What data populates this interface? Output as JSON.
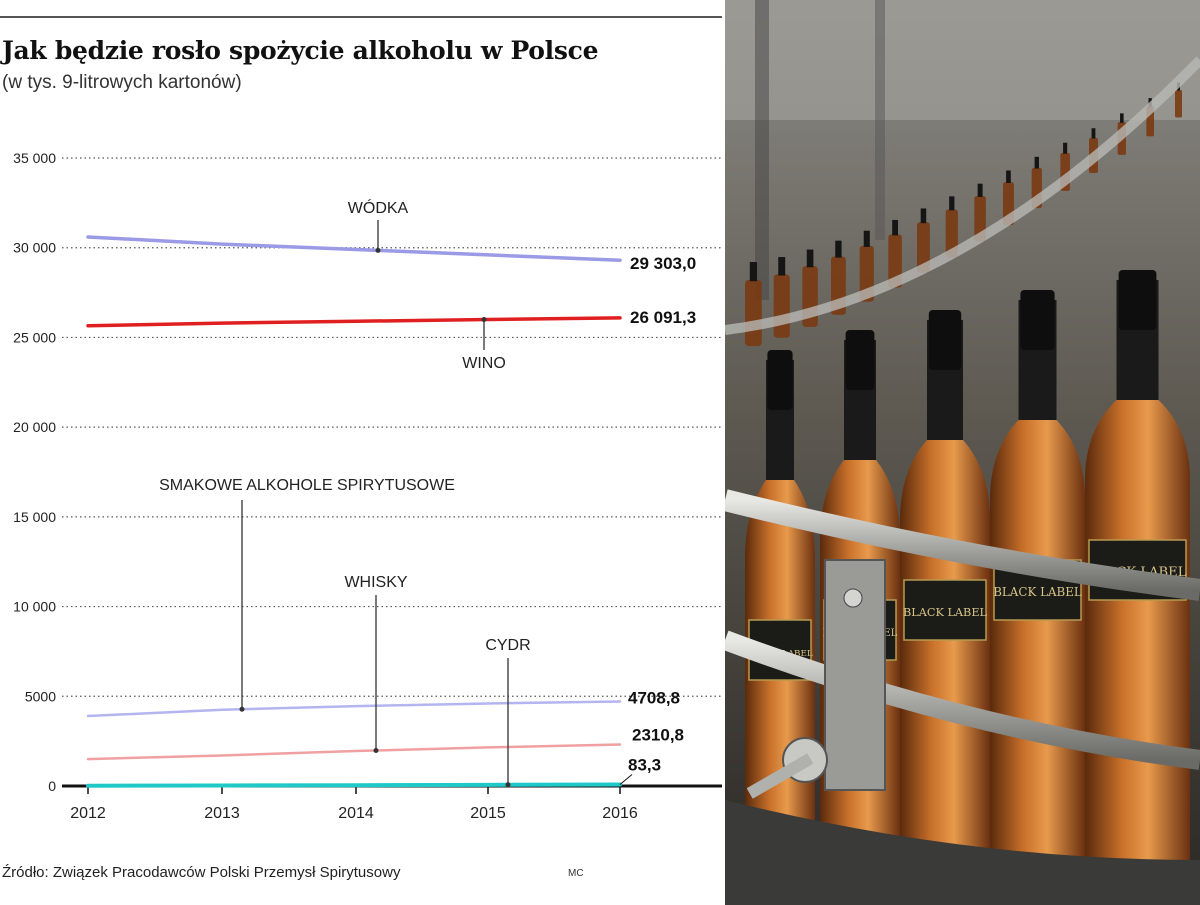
{
  "title": "Jak będzie rosło spożycie alkoholu w Polsce",
  "subtitle": "(w tys. 9-litrowych kartonów)",
  "source": "Źródło: Związek Pracodawców Polski Przemysł Spirytusowy",
  "credit": "MC",
  "colors": {
    "wodka": "#9a9ae6",
    "wino": "#e02020",
    "smakowe": "#b4b4f0",
    "whisky": "#f0a0a0",
    "cydr": "#20c8c8"
  },
  "chart_data": {
    "type": "line",
    "title": "Jak będzie rosło spożycie alkoholu w Polsce",
    "subtitle": "(w tys. 9-litrowych kartonów)",
    "x": [
      "2012",
      "2013",
      "2014",
      "2015",
      "2016"
    ],
    "ylim": [
      0,
      35000
    ],
    "yticks": [
      0,
      5000,
      10000,
      15000,
      20000,
      25000,
      30000,
      35000
    ],
    "ytick_labels": [
      "0",
      "5000",
      "10 000",
      "15 000",
      "20 000",
      "25 000",
      "30 000",
      "35 000"
    ],
    "grid": "horizontal dotted",
    "series": [
      {
        "name": "WÓDKA",
        "values": [
          30600,
          30200,
          29900,
          29600,
          29303.0
        ],
        "end_label": "29 303,0"
      },
      {
        "name": "WINO",
        "values": [
          25650,
          25800,
          25900,
          26000,
          26091.3
        ],
        "end_label": "26 091,3"
      },
      {
        "name": "SMAKOWE ALKOHOLE SPIRYTUSOWE",
        "values": [
          3900,
          4250,
          4450,
          4600,
          4708.8
        ],
        "end_label": "4708,8"
      },
      {
        "name": "WHISKY",
        "values": [
          1500,
          1700,
          1950,
          2150,
          2310.8
        ],
        "end_label": "2310,8"
      },
      {
        "name": "CYDR",
        "values": [
          15,
          30,
          45,
          65,
          83.3
        ],
        "end_label": "83,3"
      }
    ]
  },
  "photo": {
    "bottle_label": "BLACK LABEL"
  }
}
